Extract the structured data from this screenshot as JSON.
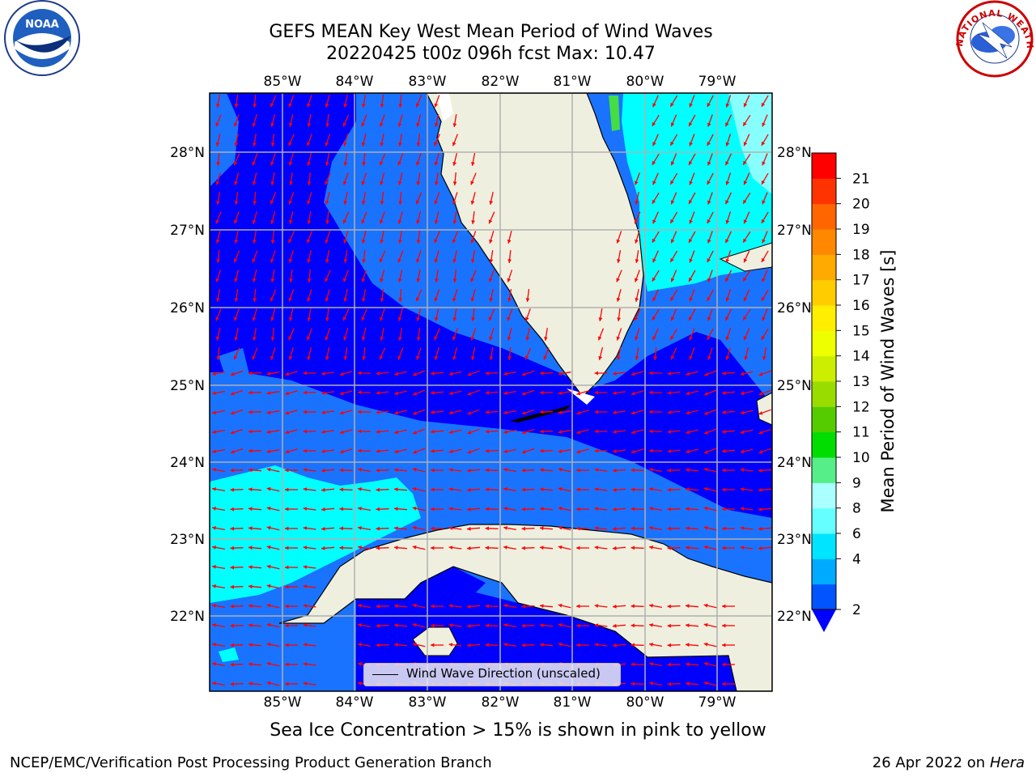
{
  "title": {
    "line1": "GEFS MEAN Key West Mean Period of Wind Waves",
    "line2": "20220425 t00z 096h fcst   Max: 10.47"
  },
  "axes": {
    "lon_labels": [
      "85°W",
      "84°W",
      "83°W",
      "82°W",
      "81°W",
      "80°W",
      "79°W"
    ],
    "lat_labels": [
      "28°N",
      "27°N",
      "26°N",
      "25°N",
      "24°N",
      "23°N",
      "22°N"
    ]
  },
  "colorbar": {
    "label": "Mean Period of Wind Waves [s]",
    "ticks": [
      "2",
      "4",
      "6",
      "8",
      "9",
      "10",
      "11",
      "12",
      "13",
      "14",
      "15",
      "16",
      "17",
      "18",
      "19",
      "20",
      "21"
    ],
    "colors": [
      "#0055ff",
      "#00aaff",
      "#00e5ff",
      "#66ffff",
      "#aaffff",
      "#55ee88",
      "#00dd00",
      "#55cc00",
      "#99dd00",
      "#ccee00",
      "#eeff00",
      "#ffee00",
      "#ffcc00",
      "#ffaa00",
      "#ff8800",
      "#ff6600",
      "#ff3300",
      "#ff0000"
    ],
    "under_color": "#0000ff"
  },
  "legend": {
    "label": "Wind Wave Direction (unscaled)"
  },
  "logos": {
    "left": "NOAA",
    "right": "NATIONAL WEATHER SERVICE"
  },
  "footer": {
    "note": "Sea Ice Concentration > 15% is shown in pink to yellow",
    "left": "NCEP/EMC/Verification Post Processing Product Generation Branch",
    "right_date": "26 Apr 2022 on ",
    "right_host": "Hera"
  },
  "colors": {
    "land": "#efefdf",
    "deep_blue": "#0000ff",
    "mid_blue": "#1a73ff",
    "cyan": "#00ffff",
    "light_cyan": "#55ffff",
    "arrow": "#ff0000",
    "grid": "#b0b0b0"
  }
}
